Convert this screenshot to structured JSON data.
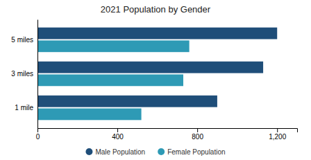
{
  "chart_data": {
    "type": "bar",
    "orientation": "horizontal",
    "title": "2021 Population by Gender",
    "categories": [
      "1 mile",
      "3 miles",
      "5 miles"
    ],
    "series": [
      {
        "name": "Male Population",
        "color": "#1F4E79",
        "values": [
          900,
          1130,
          1200
        ]
      },
      {
        "name": "Female Population",
        "color": "#2E9AB5",
        "values": [
          520,
          730,
          760
        ]
      }
    ],
    "xlim": [
      0,
      1300
    ],
    "xticks": [
      0,
      400,
      800,
      {
        "value": 1200,
        "label": "1,200"
      }
    ],
    "grid": false,
    "legend": "bottom"
  }
}
